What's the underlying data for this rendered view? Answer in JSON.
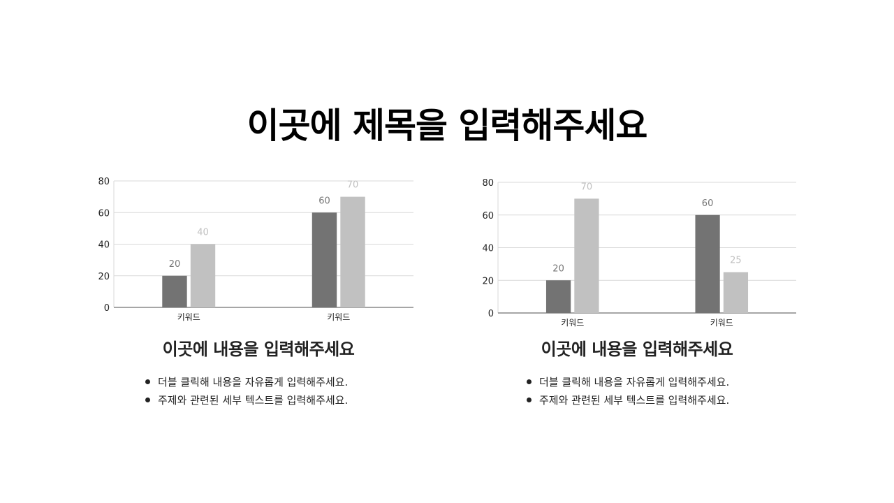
{
  "title": "이곳에 제목을 입력해주세요",
  "colors": {
    "series_dark": "#737373",
    "series_light": "#c1c1c1",
    "label_dark": "#767676",
    "label_light": "#c0c0c0",
    "grid": "#d9d9d9",
    "axis": "#888888"
  },
  "chart_data": [
    {
      "type": "bar",
      "categories": [
        "키워드",
        "키워드"
      ],
      "series": [
        {
          "values": [
            20,
            60
          ]
        },
        {
          "values": [
            40,
            70
          ]
        }
      ],
      "ylim": [
        0,
        80
      ],
      "yticks": [
        "0",
        "20",
        "40",
        "60",
        "80"
      ],
      "grid": true,
      "data_labels": true
    },
    {
      "type": "bar",
      "categories": [
        "키워드",
        "키워드"
      ],
      "series": [
        {
          "values": [
            20,
            60
          ]
        },
        {
          "values": [
            70,
            25
          ]
        }
      ],
      "ylim": [
        0,
        80
      ],
      "yticks": [
        "0",
        "20",
        "40",
        "60",
        "80"
      ],
      "grid": true,
      "data_labels": true
    }
  ],
  "panels": [
    {
      "subtitle": "이곳에 내용을 입력해주세요",
      "bullets": [
        "더블 클릭해 내용을 자유롭게 입력해주세요.",
        "주제와 관련된 세부 텍스트를 입력해주세요."
      ]
    },
    {
      "subtitle": "이곳에 내용을 입력해주세요",
      "bullets": [
        "더블 클릭해 내용을 자유롭게 입력해주세요.",
        "주제와 관련된 세부 텍스트를 입력해주세요."
      ]
    }
  ]
}
